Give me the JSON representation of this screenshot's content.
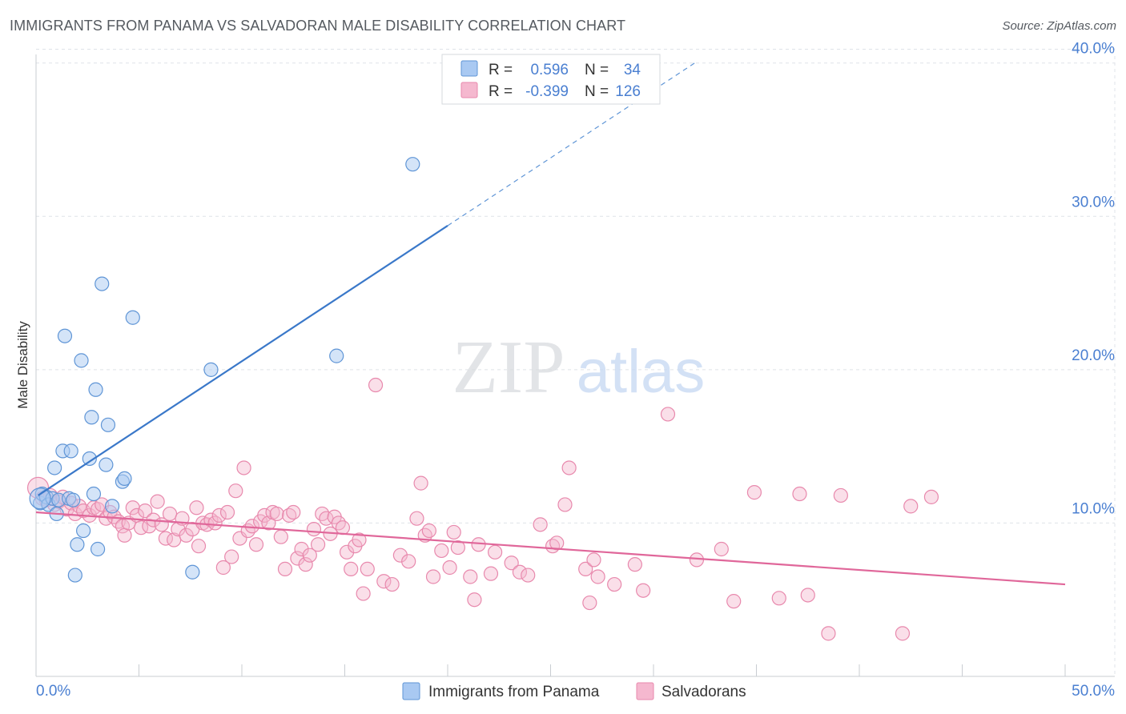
{
  "title": "IMMIGRANTS FROM PANAMA VS SALVADORAN MALE DISABILITY CORRELATION CHART",
  "source": "Source: ZipAtlas.com",
  "watermark": {
    "zip": "ZIP",
    "atlas": "atlas"
  },
  "colors": {
    "blue": "#3a78c9",
    "blue_fill": "#a9c9f2",
    "blue_stroke": "#5f95d6",
    "pink": "#e0679a",
    "pink_fill": "#f5b8cf",
    "pink_stroke": "#e889ad",
    "axis_text": "#4a7fd1",
    "grid": "#dfe3e8"
  },
  "legend": {
    "r_label": "R =",
    "n_label": "N =",
    "series": [
      {
        "r": "0.596",
        "n": "34"
      },
      {
        "r": "-0.399",
        "n": "126"
      }
    ]
  },
  "bottom_legend": [
    "Immigrants from Panama",
    "Salvadorans"
  ],
  "chart_data": {
    "type": "scatter",
    "title": "IMMIGRANTS FROM PANAMA VS SALVADORAN MALE DISABILITY CORRELATION CHART",
    "xlabel": "",
    "ylabel": "Male Disability",
    "xlim": [
      0,
      50
    ],
    "ylim": [
      0,
      41.5
    ],
    "x_tick_labels": [
      "0.0%",
      "50.0%"
    ],
    "y_ticks": [
      10,
      20,
      30,
      40
    ],
    "y_tick_labels": [
      "10.0%",
      "20.0%",
      "30.0%",
      "40.0%"
    ],
    "grid": true,
    "series": [
      {
        "name": "Immigrants from Panama",
        "r": 0.596,
        "n": 34,
        "trend": {
          "x0": 0.1,
          "y0": 11.8,
          "x1": 32.0,
          "y1": 40.0,
          "solid_until_x": 20.0
        },
        "points": [
          [
            0.2,
            11.3
          ],
          [
            0.3,
            11.9
          ],
          [
            0.5,
            11.7
          ],
          [
            0.6,
            11.2
          ],
          [
            0.8,
            11.6
          ],
          [
            0.9,
            13.6
          ],
          [
            1.0,
            10.6
          ],
          [
            1.1,
            11.5
          ],
          [
            1.3,
            14.7
          ],
          [
            1.4,
            22.2
          ],
          [
            1.6,
            11.6
          ],
          [
            1.7,
            14.7
          ],
          [
            1.8,
            11.5
          ],
          [
            1.9,
            6.6
          ],
          [
            2.0,
            8.6
          ],
          [
            2.2,
            20.6
          ],
          [
            2.3,
            9.5
          ],
          [
            2.6,
            14.2
          ],
          [
            2.7,
            16.9
          ],
          [
            2.8,
            11.9
          ],
          [
            2.9,
            18.7
          ],
          [
            3.0,
            8.3
          ],
          [
            3.2,
            25.6
          ],
          [
            3.4,
            13.8
          ],
          [
            3.5,
            16.4
          ],
          [
            3.7,
            11.1
          ],
          [
            4.2,
            12.7
          ],
          [
            4.3,
            12.9
          ],
          [
            4.7,
            23.4
          ],
          [
            7.6,
            6.8
          ],
          [
            8.5,
            20.0
          ],
          [
            14.6,
            20.9
          ],
          [
            18.3,
            33.4
          ],
          [
            0.2,
            11.6
          ]
        ]
      },
      {
        "name": "Salvadorans",
        "r": -0.399,
        "n": 126,
        "trend": {
          "x0": 0,
          "y0": 10.7,
          "x1": 50,
          "y1": 6.0
        },
        "points": [
          [
            0.1,
            12.3
          ],
          [
            0.3,
            11.6
          ],
          [
            0.5,
            11.5
          ],
          [
            0.7,
            11.8
          ],
          [
            0.9,
            11.2
          ],
          [
            1.1,
            11.4
          ],
          [
            1.3,
            11.7
          ],
          [
            1.5,
            10.9
          ],
          [
            1.7,
            11.3
          ],
          [
            1.9,
            10.6
          ],
          [
            2.1,
            11.1
          ],
          [
            2.3,
            10.8
          ],
          [
            2.6,
            10.5
          ],
          [
            2.8,
            11.0
          ],
          [
            3.0,
            10.9
          ],
          [
            3.2,
            11.2
          ],
          [
            3.4,
            10.3
          ],
          [
            3.6,
            10.7
          ],
          [
            3.8,
            10.4
          ],
          [
            4.0,
            10.1
          ],
          [
            4.2,
            9.8
          ],
          [
            4.3,
            9.2
          ],
          [
            4.5,
            10.0
          ],
          [
            4.7,
            11.0
          ],
          [
            4.9,
            10.5
          ],
          [
            5.1,
            9.7
          ],
          [
            5.3,
            10.8
          ],
          [
            5.5,
            9.8
          ],
          [
            5.7,
            10.2
          ],
          [
            5.9,
            11.4
          ],
          [
            6.1,
            9.9
          ],
          [
            6.3,
            9.0
          ],
          [
            6.5,
            10.6
          ],
          [
            6.7,
            8.9
          ],
          [
            6.9,
            9.6
          ],
          [
            7.1,
            10.3
          ],
          [
            7.3,
            9.2
          ],
          [
            7.6,
            9.6
          ],
          [
            7.8,
            11.0
          ],
          [
            7.9,
            8.5
          ],
          [
            8.1,
            10.0
          ],
          [
            8.3,
            9.9
          ],
          [
            8.5,
            10.2
          ],
          [
            8.7,
            10.0
          ],
          [
            8.9,
            10.5
          ],
          [
            9.1,
            7.1
          ],
          [
            9.3,
            10.7
          ],
          [
            9.5,
            7.8
          ],
          [
            9.7,
            12.1
          ],
          [
            9.9,
            9.0
          ],
          [
            10.1,
            13.6
          ],
          [
            10.3,
            9.5
          ],
          [
            10.5,
            9.8
          ],
          [
            10.7,
            8.6
          ],
          [
            10.9,
            10.1
          ],
          [
            11.1,
            10.5
          ],
          [
            11.3,
            10.0
          ],
          [
            11.5,
            10.7
          ],
          [
            11.7,
            10.6
          ],
          [
            11.9,
            9.1
          ],
          [
            12.1,
            7.0
          ],
          [
            12.3,
            10.5
          ],
          [
            12.5,
            10.7
          ],
          [
            12.7,
            7.7
          ],
          [
            12.9,
            8.3
          ],
          [
            13.1,
            7.3
          ],
          [
            13.3,
            7.9
          ],
          [
            13.5,
            9.6
          ],
          [
            13.7,
            8.6
          ],
          [
            13.9,
            10.6
          ],
          [
            14.1,
            10.3
          ],
          [
            14.3,
            9.3
          ],
          [
            14.5,
            10.4
          ],
          [
            14.7,
            10.0
          ],
          [
            14.9,
            9.7
          ],
          [
            15.1,
            8.1
          ],
          [
            15.3,
            7.0
          ],
          [
            15.5,
            8.5
          ],
          [
            15.7,
            8.9
          ],
          [
            15.9,
            5.4
          ],
          [
            16.1,
            7.0
          ],
          [
            16.5,
            19.0
          ],
          [
            16.9,
            6.2
          ],
          [
            17.3,
            6.0
          ],
          [
            17.7,
            7.9
          ],
          [
            18.1,
            7.5
          ],
          [
            18.5,
            10.3
          ],
          [
            18.7,
            12.6
          ],
          [
            18.9,
            9.2
          ],
          [
            19.1,
            9.5
          ],
          [
            19.3,
            6.5
          ],
          [
            19.7,
            8.2
          ],
          [
            20.1,
            7.1
          ],
          [
            20.3,
            9.4
          ],
          [
            20.5,
            8.4
          ],
          [
            21.1,
            6.5
          ],
          [
            21.3,
            5.0
          ],
          [
            21.5,
            8.6
          ],
          [
            22.1,
            6.7
          ],
          [
            22.3,
            8.1
          ],
          [
            23.1,
            7.4
          ],
          [
            23.5,
            6.8
          ],
          [
            23.9,
            6.6
          ],
          [
            24.5,
            9.9
          ],
          [
            25.1,
            8.5
          ],
          [
            25.3,
            8.7
          ],
          [
            25.7,
            11.2
          ],
          [
            25.9,
            13.6
          ],
          [
            26.7,
            7.0
          ],
          [
            26.9,
            4.8
          ],
          [
            27.1,
            7.6
          ],
          [
            27.3,
            6.5
          ],
          [
            28.1,
            6.0
          ],
          [
            29.1,
            7.3
          ],
          [
            29.5,
            5.6
          ],
          [
            30.7,
            17.1
          ],
          [
            32.1,
            7.6
          ],
          [
            33.3,
            8.3
          ],
          [
            33.9,
            4.9
          ],
          [
            34.9,
            12.0
          ],
          [
            36.1,
            5.1
          ],
          [
            37.1,
            11.9
          ],
          [
            37.5,
            5.3
          ],
          [
            38.5,
            2.8
          ],
          [
            39.1,
            11.8
          ],
          [
            42.1,
            2.8
          ],
          [
            42.5,
            11.1
          ],
          [
            43.5,
            11.7
          ]
        ]
      }
    ]
  }
}
